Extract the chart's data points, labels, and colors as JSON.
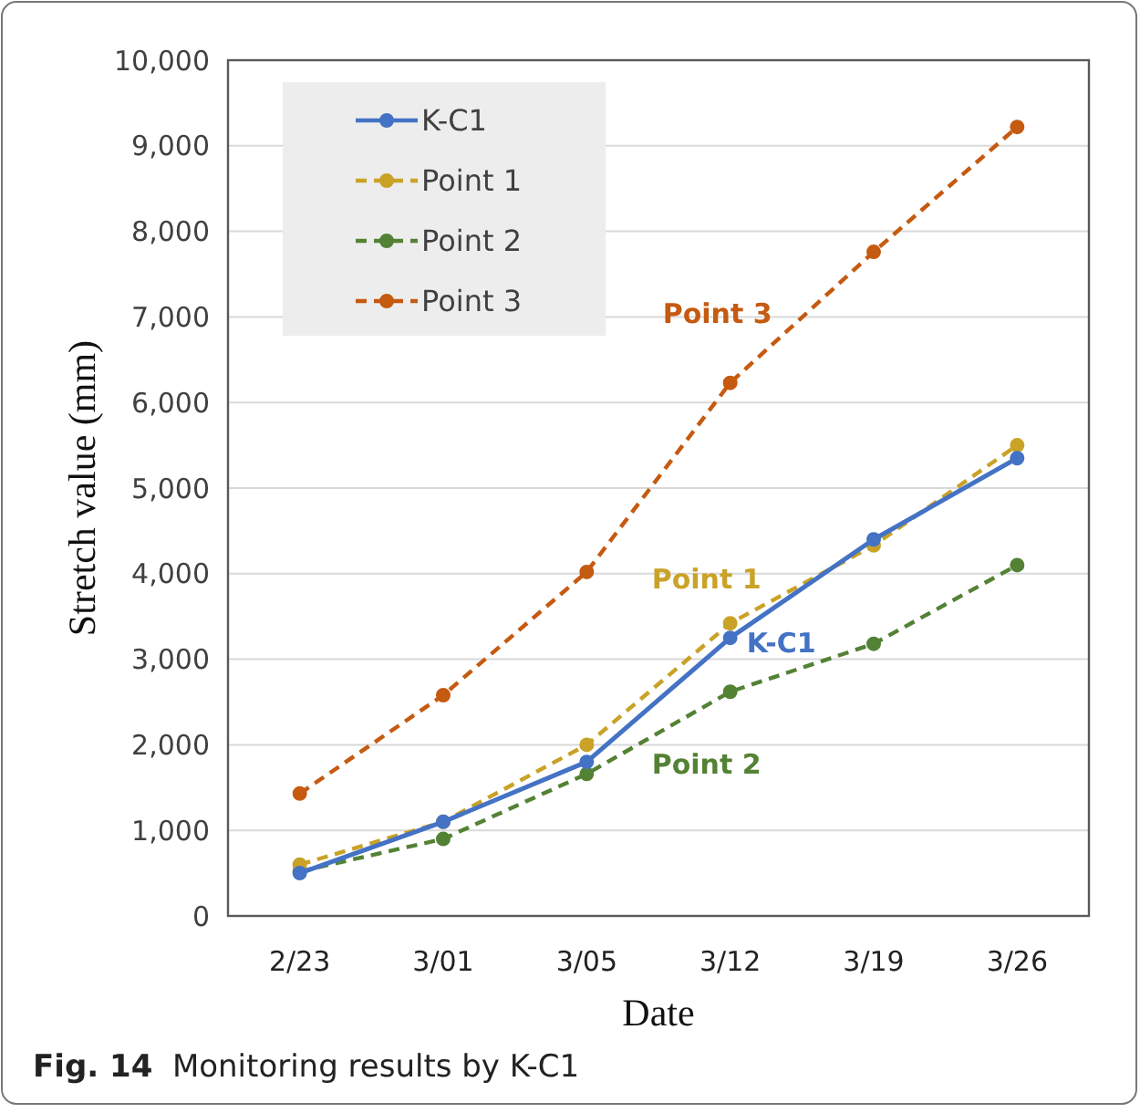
{
  "chart_data": {
    "type": "line",
    "xlabel": "Date",
    "ylabel": "Stretch value (mm)",
    "annotations": [
      "Fig. 14  Monitoring results by K-C1"
    ],
    "categories": [
      "2/23",
      "3/01",
      "3/05",
      "3/12",
      "3/19",
      "3/26"
    ],
    "ylim": [
      0,
      10000
    ],
    "yticks": [
      {
        "value": 0,
        "label": "0"
      },
      {
        "value": 1000,
        "label": "1,000"
      },
      {
        "value": 2000,
        "label": "2,000"
      },
      {
        "value": 3000,
        "label": "3,000"
      },
      {
        "value": 4000,
        "label": "4,000"
      },
      {
        "value": 5000,
        "label": "5,000"
      },
      {
        "value": 6000,
        "label": "6,000"
      },
      {
        "value": 7000,
        "label": "7,000"
      },
      {
        "value": 8000,
        "label": "8,000"
      },
      {
        "value": 9000,
        "label": "9,000"
      },
      {
        "value": 10000,
        "label": "10,000"
      }
    ],
    "grid": "y",
    "legend": "top left",
    "marker": "circle",
    "series": [
      {
        "name": "K-C1",
        "color": "#4472c4",
        "line_style": "solid",
        "values": [
          500,
          1100,
          1800,
          3250,
          4400,
          5350
        ]
      },
      {
        "name": "Point 1",
        "color": "#c9a227",
        "line_style": "dashed",
        "values": [
          600,
          1100,
          2000,
          3420,
          4330,
          5500
        ]
      },
      {
        "name": "Point 2",
        "color": "#548235",
        "line_style": "dashed",
        "values": [
          520,
          900,
          1660,
          2620,
          3180,
          4100
        ]
      },
      {
        "name": "Point 3",
        "color": "#c55a11",
        "line_style": "dashed",
        "values": [
          1430,
          2580,
          4020,
          6230,
          7760,
          9220
        ]
      }
    ]
  }
}
